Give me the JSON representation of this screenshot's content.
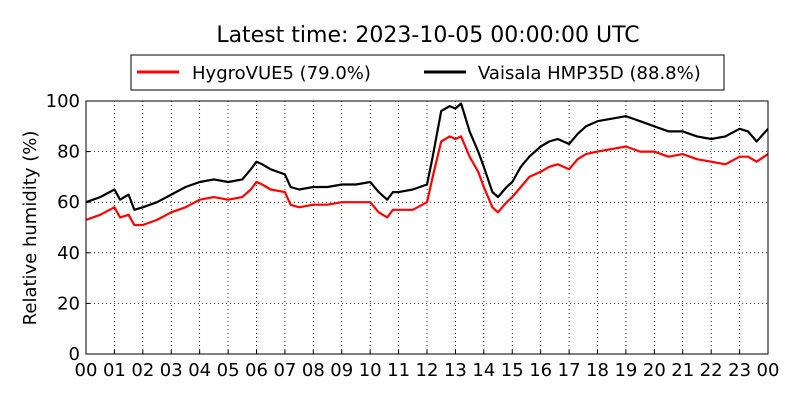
{
  "chart_data": {
    "type": "line",
    "title": "Latest time: 2023-10-05 00:00:00 UTC",
    "xlabel": "",
    "ylabel": "Relative humidity (%)",
    "xlim": [
      0,
      24
    ],
    "ylim": [
      0,
      100
    ],
    "grid": true,
    "legend_position": "top",
    "x_tick_labels": [
      "00",
      "01",
      "02",
      "03",
      "04",
      "05",
      "06",
      "07",
      "08",
      "09",
      "10",
      "11",
      "12",
      "13",
      "14",
      "15",
      "16",
      "17",
      "18",
      "19",
      "20",
      "21",
      "22",
      "23",
      "00"
    ],
    "y_tick_labels": [
      "0",
      "20",
      "40",
      "60",
      "80",
      "100"
    ],
    "x": [
      0,
      0.5,
      1,
      1.2,
      1.5,
      1.7,
      2,
      2.5,
      3,
      3.5,
      4,
      4.5,
      5,
      5.5,
      5.8,
      6,
      6.2,
      6.5,
      7,
      7.2,
      7.5,
      8,
      8.5,
      9,
      9.5,
      10,
      10.3,
      10.6,
      10.8,
      11,
      11.5,
      12,
      12.2,
      12.5,
      12.8,
      13,
      13.2,
      13.5,
      13.8,
      14,
      14.3,
      14.5,
      14.8,
      15,
      15.3,
      15.6,
      16,
      16.3,
      16.6,
      17,
      17.3,
      17.6,
      18,
      18.5,
      19,
      19.5,
      20,
      20.5,
      21,
      21.5,
      22,
      22.5,
      23,
      23.3,
      23.6,
      24
    ],
    "series": [
      {
        "name": "HygroVUE5 (79.0%)",
        "color": "#ff0000",
        "values": [
          53,
          55,
          58,
          54,
          55,
          51,
          51,
          53,
          56,
          58,
          61,
          62,
          61,
          62,
          65,
          68,
          67,
          65,
          64,
          59,
          58,
          59,
          59,
          60,
          60,
          60,
          56,
          54,
          57,
          57,
          57,
          60,
          70,
          84,
          86,
          85,
          86,
          78,
          72,
          66,
          58,
          56,
          60,
          62,
          66,
          70,
          72,
          74,
          75,
          73,
          77,
          79,
          80,
          81,
          82,
          80,
          80,
          78,
          79,
          77,
          76,
          75,
          78,
          78,
          76,
          79
        ]
      },
      {
        "name": "Vaisala HMP35D (88.8%)",
        "color": "#000000",
        "values": [
          60,
          62,
          65,
          61,
          63,
          57,
          58,
          60,
          63,
          66,
          68,
          69,
          68,
          69,
          73,
          76,
          75,
          73,
          71,
          66,
          65,
          66,
          66,
          67,
          67,
          68,
          64,
          61,
          64,
          64,
          65,
          67,
          78,
          96,
          98,
          97,
          99,
          88,
          80,
          74,
          64,
          62,
          66,
          68,
          74,
          78,
          82,
          84,
          85,
          83,
          87,
          90,
          92,
          93,
          94,
          92,
          90,
          88,
          88,
          86,
          85,
          86,
          89,
          88,
          84,
          89
        ]
      }
    ]
  }
}
